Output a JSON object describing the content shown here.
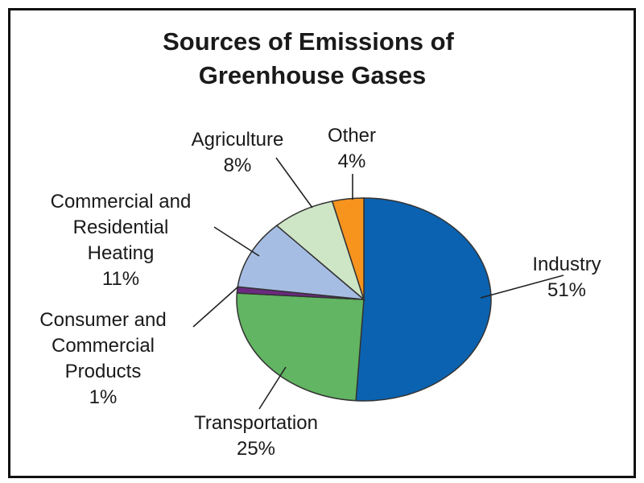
{
  "chart_data": {
    "type": "pie",
    "title": [
      "Sources of Emissions of",
      "Greenhouse Gases"
    ],
    "slices": [
      {
        "label": [
          "Industry",
          "51%"
        ],
        "value": 51,
        "color": "#0b62b0"
      },
      {
        "label": [
          "Transportation",
          "25%"
        ],
        "value": 25,
        "color": "#62b562"
      },
      {
        "label": [
          "Consumer and",
          "Commercial",
          "Products",
          "1%"
        ],
        "value": 1,
        "color": "#6b2a80"
      },
      {
        "label": [
          "Commercial and",
          "Residential",
          "Heating",
          "11%"
        ],
        "value": 11,
        "color": "#a6bde3"
      },
      {
        "label": [
          "Agriculture",
          "8%"
        ],
        "value": 8,
        "color": "#cfe6c6"
      },
      {
        "label": [
          "Other",
          "4%"
        ],
        "value": 4,
        "color": "#f7941d"
      }
    ]
  }
}
